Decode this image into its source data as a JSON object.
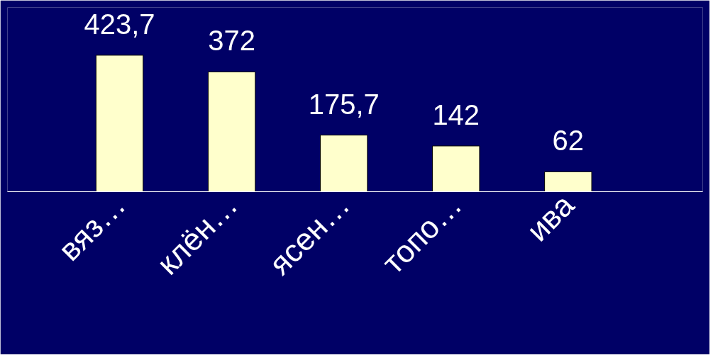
{
  "chart_data": {
    "type": "bar",
    "categories": [
      "вяз…",
      "клён…",
      "ясен…",
      "топо…",
      "ива"
    ],
    "values": [
      423.7,
      372,
      175.7,
      142,
      62
    ],
    "value_labels": [
      "423,7",
      "372",
      "175,7",
      "142",
      "62"
    ],
    "color": "#ffffcc",
    "grid": false,
    "tick_labels": "x"
  }
}
